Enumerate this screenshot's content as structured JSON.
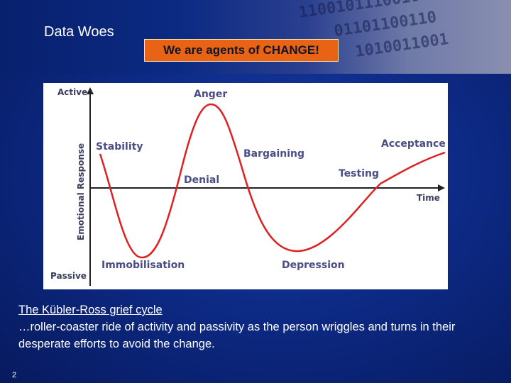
{
  "slide": {
    "title": "Data Woes",
    "callout": "We are agents of CHANGE!",
    "page_number": "2"
  },
  "diagram": {
    "y_top_label": "Active",
    "y_bottom_label": "Passive",
    "y_axis_label": "Emotional Response",
    "x_axis_label": "Time",
    "stages": {
      "stability": "Stability",
      "immobilisation": "Immobilisation",
      "denial": "Denial",
      "anger": "Anger",
      "bargaining": "Bargaining",
      "depression": "Depression",
      "testing": "Testing",
      "acceptance": "Acceptance"
    },
    "curve_color": "#e02020"
  },
  "caption": {
    "heading": "The Kübler-Ross grief cycle",
    "body": "…roller-coaster ride of activity and passivity as the person wriggles and turns in their desperate efforts to avoid the change."
  }
}
